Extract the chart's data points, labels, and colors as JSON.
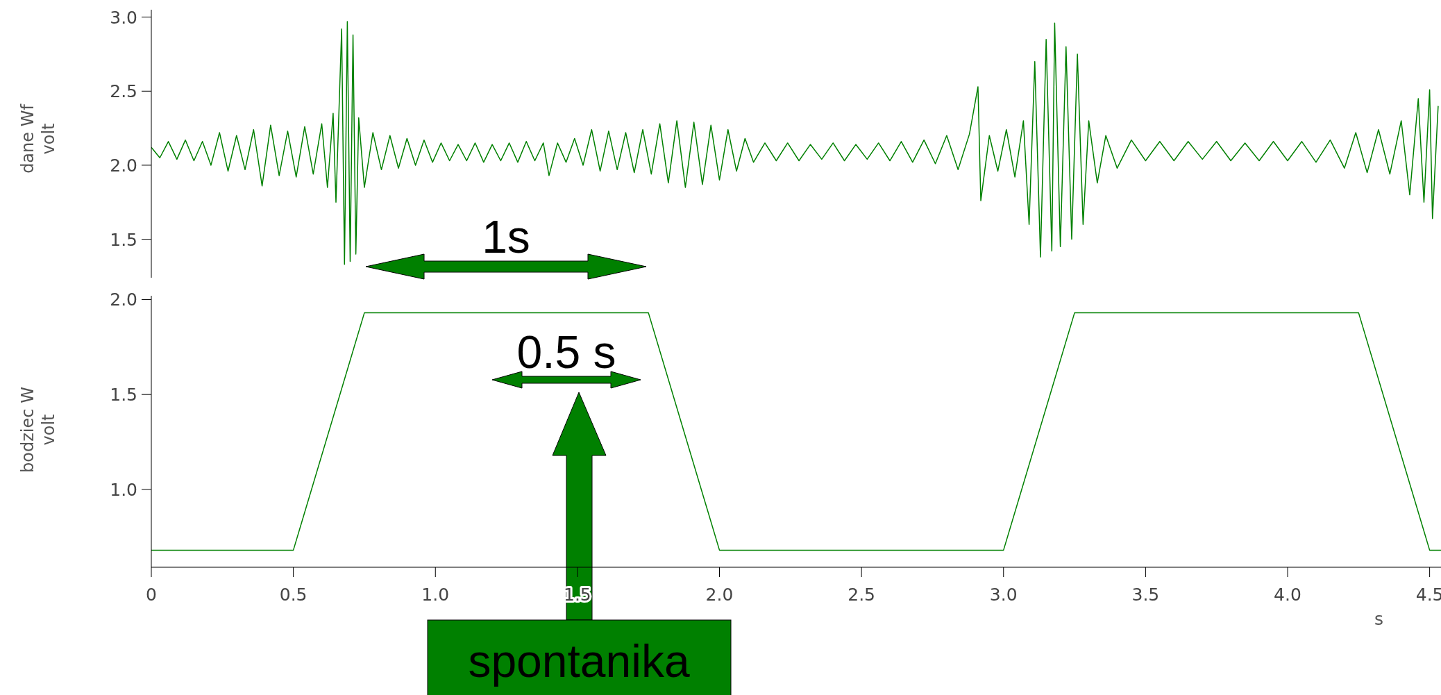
{
  "chart_data": [
    {
      "type": "line",
      "ylabel": "dane Wf\nvolt",
      "xlim": [
        0,
        4.54
      ],
      "ylim": [
        1.24,
        3.05
      ],
      "yticks": [
        {
          "value": 1.5,
          "label": "1.5"
        },
        {
          "value": 2,
          "label": "2.0"
        },
        {
          "value": 2.5,
          "label": "2.5"
        },
        {
          "value": 3,
          "label": "3.0"
        }
      ],
      "tick_labels": "y",
      "grid": false,
      "legend": false,
      "marker": "none",
      "x": [
        0,
        0.03,
        0.06,
        0.09,
        0.12,
        0.15,
        0.18,
        0.21,
        0.24,
        0.27,
        0.3,
        0.33,
        0.36,
        0.39,
        0.42,
        0.45,
        0.48,
        0.51,
        0.54,
        0.57,
        0.6,
        0.62,
        0.64,
        0.65,
        0.67,
        0.68,
        0.69,
        0.7,
        0.71,
        0.72,
        0.73,
        0.75,
        0.78,
        0.81,
        0.84,
        0.87,
        0.9,
        0.93,
        0.96,
        0.99,
        1.02,
        1.05,
        1.08,
        1.11,
        1.14,
        1.17,
        1.2,
        1.23,
        1.26,
        1.29,
        1.32,
        1.35,
        1.38,
        1.4,
        1.43,
        1.46,
        1.49,
        1.52,
        1.55,
        1.58,
        1.61,
        1.64,
        1.67,
        1.7,
        1.73,
        1.76,
        1.79,
        1.82,
        1.85,
        1.88,
        1.91,
        1.94,
        1.97,
        2,
        2.03,
        2.06,
        2.09,
        2.12,
        2.16,
        2.2,
        2.24,
        2.28,
        2.32,
        2.36,
        2.4,
        2.44,
        2.48,
        2.52,
        2.56,
        2.6,
        2.64,
        2.68,
        2.72,
        2.76,
        2.8,
        2.84,
        2.88,
        2.91,
        2.92,
        2.95,
        2.98,
        3.01,
        3.04,
        3.07,
        3.09,
        3.11,
        3.13,
        3.15,
        3.17,
        3.18,
        3.2,
        3.22,
        3.24,
        3.26,
        3.28,
        3.3,
        3.33,
        3.36,
        3.4,
        3.45,
        3.5,
        3.55,
        3.6,
        3.65,
        3.7,
        3.75,
        3.8,
        3.85,
        3.9,
        3.95,
        4,
        4.05,
        4.1,
        4.15,
        4.2,
        4.24,
        4.28,
        4.32,
        4.36,
        4.4,
        4.43,
        4.46,
        4.48,
        4.5,
        4.51,
        4.53
      ],
      "series": [
        {
          "color": "#008000",
          "values": [
            2.12,
            2.05,
            2.16,
            2.04,
            2.17,
            2.03,
            2.16,
            2.0,
            2.22,
            1.96,
            2.2,
            1.97,
            2.24,
            1.86,
            2.27,
            1.93,
            2.23,
            1.92,
            2.26,
            1.94,
            2.28,
            1.85,
            2.35,
            1.75,
            2.92,
            1.33,
            2.97,
            1.35,
            2.88,
            1.4,
            2.32,
            1.85,
            2.22,
            1.97,
            2.2,
            1.98,
            2.18,
            2.0,
            2.17,
            2.02,
            2.15,
            2.03,
            2.14,
            2.03,
            2.15,
            2.02,
            2.14,
            2.03,
            2.15,
            2.02,
            2.16,
            2.03,
            2.15,
            1.93,
            2.15,
            2.02,
            2.18,
            2.0,
            2.24,
            1.96,
            2.23,
            1.97,
            2.22,
            1.95,
            2.24,
            1.94,
            2.28,
            1.88,
            2.3,
            1.85,
            2.29,
            1.87,
            2.27,
            1.9,
            2.24,
            1.96,
            2.18,
            2.02,
            2.15,
            2.03,
            2.15,
            2.03,
            2.14,
            2.04,
            2.15,
            2.03,
            2.14,
            2.04,
            2.15,
            2.03,
            2.16,
            2.02,
            2.17,
            2.01,
            2.2,
            1.97,
            2.21,
            2.53,
            1.76,
            2.2,
            1.96,
            2.24,
            1.92,
            2.3,
            1.6,
            2.7,
            1.38,
            2.85,
            1.42,
            2.96,
            1.45,
            2.8,
            1.5,
            2.75,
            1.6,
            2.3,
            1.88,
            2.2,
            1.98,
            2.17,
            2.03,
            2.16,
            2.03,
            2.16,
            2.04,
            2.16,
            2.03,
            2.15,
            2.03,
            2.16,
            2.03,
            2.16,
            2.02,
            2.17,
            1.98,
            2.22,
            1.95,
            2.24,
            1.94,
            2.3,
            1.8,
            2.45,
            1.75,
            2.51,
            1.64,
            2.4
          ]
        }
      ]
    },
    {
      "type": "line",
      "ylabel": "bodziec W\nvolt",
      "xlabel": "s",
      "xlim": [
        0,
        4.54
      ],
      "ylim": [
        0.59,
        2.02
      ],
      "xticks": [
        0,
        0.5,
        {
          "value": 1,
          "label": "1.0"
        },
        1.5,
        {
          "value": 2,
          "label": "2.0"
        },
        2.5,
        {
          "value": 3,
          "label": "3.0"
        },
        3.5,
        {
          "value": 4,
          "label": "4.0"
        },
        4.5
      ],
      "yticks": [
        {
          "value": 1,
          "label": "1.0"
        },
        {
          "value": 1.5,
          "label": "1.5"
        },
        {
          "value": 2,
          "label": "2.0"
        }
      ],
      "grid": false,
      "legend": false,
      "marker": "none",
      "x": [
        0,
        0.5,
        0.75,
        1.75,
        2.0,
        3.0,
        3.25,
        4.25,
        4.5,
        4.54
      ],
      "series": [
        {
          "color": "#008000",
          "values": [
            0.68,
            0.68,
            1.93,
            1.93,
            0.68,
            0.68,
            1.93,
            1.93,
            0.68,
            0.68
          ]
        }
      ],
      "annotations": [
        "1s",
        "0.5 s",
        "spontanika"
      ]
    }
  ]
}
